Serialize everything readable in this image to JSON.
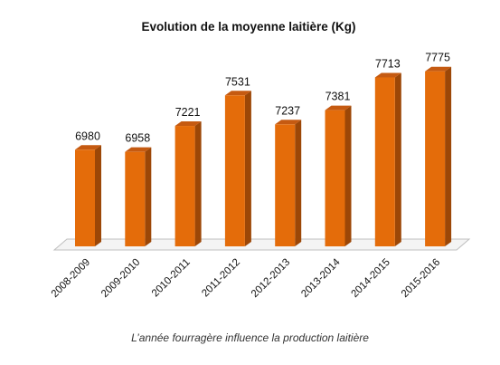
{
  "chart_data": {
    "type": "bar",
    "title": "Evolution de la moyenne laitière (Kg)",
    "categories": [
      "2008-2009",
      "2009-2010",
      "2010-2011",
      "2011-2012",
      "2012-2013",
      "2013-2014",
      "2014-2015",
      "2015-2016"
    ],
    "values": [
      6980,
      6958,
      7221,
      7531,
      7237,
      7381,
      7713,
      7775
    ],
    "xlabel": "",
    "ylabel": "",
    "ylim": [
      6000,
      7800
    ],
    "grid": false,
    "legend": "none",
    "three_d": true,
    "colors": {
      "bar_front": "#E46C0A",
      "bar_side": "#9C4707",
      "bar_top": "#C55A11",
      "floor": "#D9D9D9"
    }
  },
  "caption": "L’année fourragère influence la production laitière"
}
